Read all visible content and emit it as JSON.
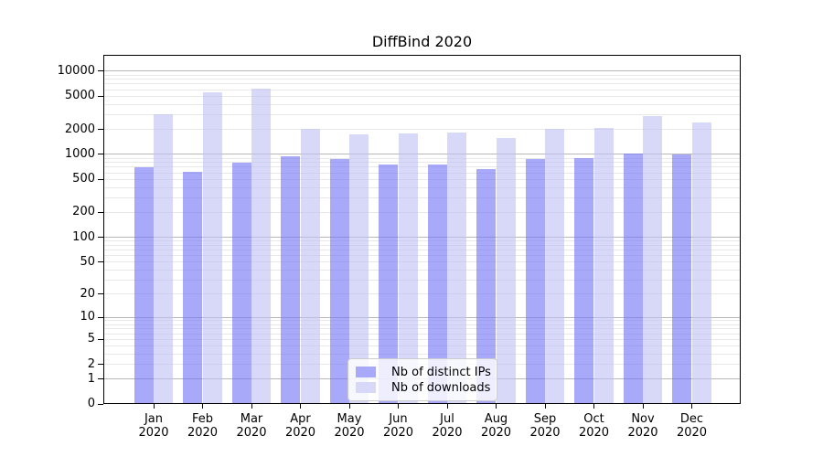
{
  "chart_data": {
    "type": "bar",
    "title": "DiffBind 2020",
    "y_scale": "log1p",
    "grid": true,
    "legend_position": "bottom-center-inside",
    "categories": [
      "Jan",
      "Feb",
      "Mar",
      "Apr",
      "May",
      "Jun",
      "Jul",
      "Aug",
      "Sep",
      "Oct",
      "Nov",
      "Dec"
    ],
    "year_label": "2020",
    "series": [
      {
        "name": "Nb of distinct IPs",
        "values": [
          700,
          620,
          800,
          940,
          870,
          760,
          760,
          660,
          880,
          890,
          1020,
          1000
        ],
        "color": "#a9a9f9",
        "fill_rgba": "rgba(112,112,245,0.6)"
      },
      {
        "name": "Nb of downloads",
        "values": [
          3000,
          5600,
          6100,
          2050,
          1760,
          1780,
          1840,
          1560,
          2050,
          2100,
          2870,
          2400
        ],
        "color": "#d8d8f9",
        "fill_rgba": "rgba(190,190,245,0.6)"
      }
    ],
    "y_ticks": [
      0,
      1,
      2,
      5,
      10,
      20,
      50,
      100,
      200,
      500,
      1000,
      2000,
      5000,
      10000
    ],
    "ylim": [
      0,
      15500
    ],
    "colors": {
      "grid_major": "#b8b8b8",
      "grid_minor": "#e8e8e8",
      "spine": "#000000",
      "text": "#000000"
    }
  }
}
